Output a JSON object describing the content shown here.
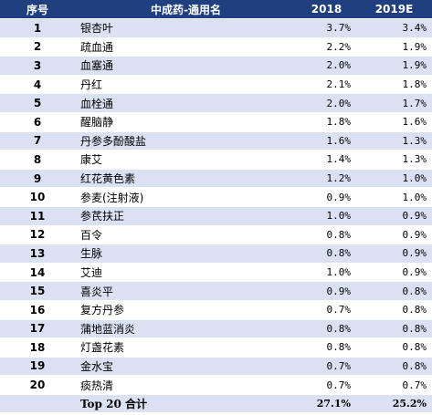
{
  "table": {
    "header": [
      "序号",
      "中成药-通用名",
      "2018",
      "2019E"
    ],
    "rows": [
      [
        "1",
        "银杏叶",
        "3.7%",
        "3.4%"
      ],
      [
        "2",
        "疏血通",
        "2.2%",
        "1.9%"
      ],
      [
        "3",
        "血塞通",
        "2.0%",
        "1.9%"
      ],
      [
        "4",
        "丹红",
        "2.1%",
        "1.8%"
      ],
      [
        "5",
        "血栓通",
        "2.0%",
        "1.7%"
      ],
      [
        "6",
        "醒脑静",
        "1.8%",
        "1.6%"
      ],
      [
        "7",
        "丹参多酚酸盐",
        "1.6%",
        "1.3%"
      ],
      [
        "8",
        "康艾",
        "1.4%",
        "1.3%"
      ],
      [
        "9",
        "红花黄色素",
        "1.2%",
        "1.0%"
      ],
      [
        "10",
        "参麦(注射液)",
        "0.9%",
        "1.0%"
      ],
      [
        "11",
        "参芪扶正",
        "1.0%",
        "0.9%"
      ],
      [
        "12",
        "百令",
        "0.8%",
        "0.9%"
      ],
      [
        "13",
        "生脉",
        "0.8%",
        "0.9%"
      ],
      [
        "14",
        "艾迪",
        "1.0%",
        "0.9%"
      ],
      [
        "15",
        "喜炎平",
        "0.9%",
        "0.8%"
      ],
      [
        "16",
        "复方丹参",
        "0.7%",
        "0.8%"
      ],
      [
        "17",
        "蒲地蓝消炎",
        "0.8%",
        "0.8%"
      ],
      [
        "18",
        "灯盏花素",
        "0.8%",
        "0.8%"
      ],
      [
        "19",
        "金水宝",
        "0.7%",
        "0.8%"
      ],
      [
        "20",
        "痰热清",
        "0.7%",
        "0.7%"
      ]
    ],
    "total": [
      "Top 20 合计",
      "27.1%",
      "25.2%"
    ]
  }
}
